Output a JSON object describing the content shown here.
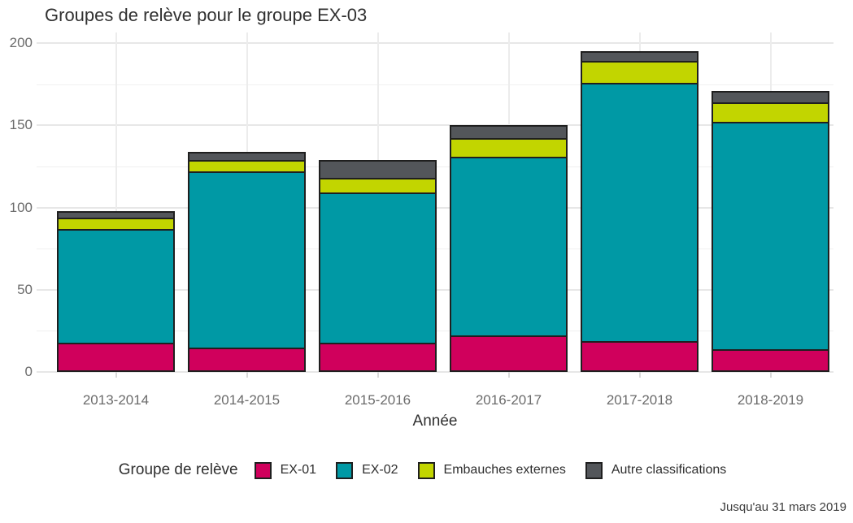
{
  "title": "Groupes de relève pour le groupe EX-03",
  "footer": "Jusqu'au 31 mars 2019",
  "chart_data": {
    "type": "bar",
    "stacked": true,
    "title": "Groupes de relève pour le groupe EX-03",
    "xlabel": "Année",
    "ylabel": "",
    "legend_title": "Groupe de relève",
    "legend_position": "bottom",
    "grid": true,
    "ylim": [
      0,
      200
    ],
    "yticks": [
      0,
      50,
      100,
      150,
      200
    ],
    "yticks_minor": [
      25,
      75,
      125,
      175
    ],
    "categories": [
      "2013-2014",
      "2014-2015",
      "2015-2016",
      "2016-2017",
      "2017-2018",
      "2018-2019"
    ],
    "series": [
      {
        "name": "EX-01",
        "color": "#d0005c",
        "values": [
          18,
          15,
          18,
          22,
          19,
          14
        ]
      },
      {
        "name": "EX-02",
        "color": "#0099a5",
        "values": [
          69,
          107,
          91,
          109,
          157,
          138
        ]
      },
      {
        "name": "Embauches externes",
        "color": "#c2d500",
        "values": [
          7,
          7,
          9,
          11,
          13,
          12
        ]
      },
      {
        "name": "Autre classifications",
        "color": "#53565a",
        "values": [
          4,
          5,
          11,
          8,
          6,
          7
        ]
      }
    ],
    "totals": [
      98,
      134,
      129,
      150,
      195,
      171
    ]
  }
}
